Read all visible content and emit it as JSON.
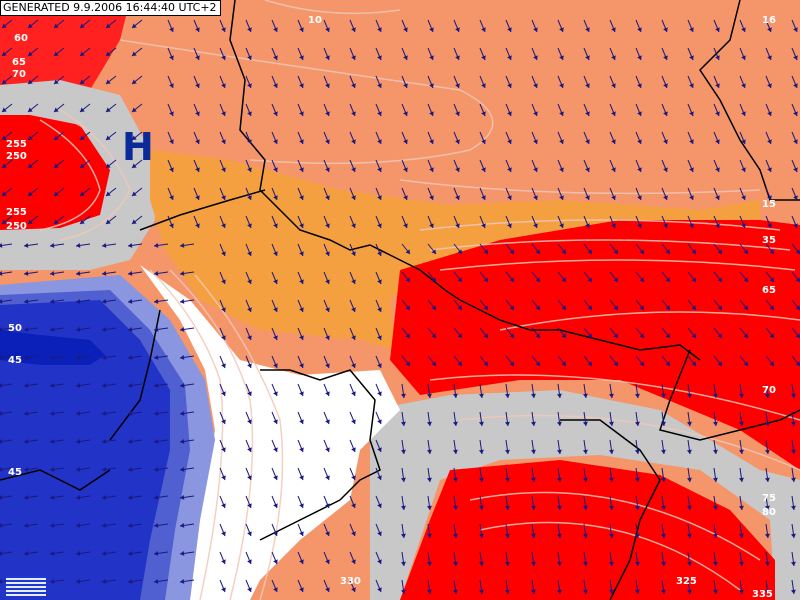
{
  "header": {
    "generated_stamp": "GENERATED 9.9.2006 16:44:40 UTC+2"
  },
  "map": {
    "pressure_system": "H",
    "contour_labels": [
      "10",
      "16",
      "60",
      "65",
      "70",
      "255",
      "250",
      "255",
      "250",
      "50",
      "45",
      "45",
      "15",
      "35",
      "65",
      "70",
      "75",
      "80",
      "335",
      "330",
      "325"
    ],
    "colors": {
      "salmon": "#f4956a",
      "orange": "#f5a040",
      "red": "#ff0000",
      "blue": "#2233c8",
      "deep_blue": "#0a20b8",
      "gray_band": "#c8c8c8",
      "white_zone": "#ffffff",
      "arrow": "#1a1a80",
      "border": "#000000"
    }
  }
}
